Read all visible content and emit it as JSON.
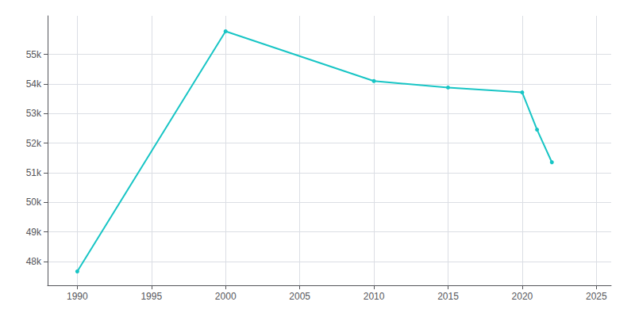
{
  "chart_data": {
    "type": "line",
    "x": [
      1990,
      2000,
      2010,
      2015,
      2020,
      2021,
      2022
    ],
    "values": [
      47669,
      55779,
      54098,
      53880,
      53714,
      52458,
      51356
    ],
    "color": "#18C5C5",
    "marker": "circle",
    "xlim": [
      1988,
      2026
    ],
    "xticks": [
      1990,
      1995,
      2000,
      2005,
      2010,
      2015,
      2020,
      2025
    ],
    "ylim": [
      47200,
      56300
    ],
    "yticks": [
      {
        "value": 48000,
        "label": "48k"
      },
      {
        "value": 49000,
        "label": "49k"
      },
      {
        "value": 50000,
        "label": "50k"
      },
      {
        "value": 51000,
        "label": "51k"
      },
      {
        "value": 52000,
        "label": "52k"
      },
      {
        "value": 53000,
        "label": "53k"
      },
      {
        "value": 54000,
        "label": "54k"
      },
      {
        "value": 55000,
        "label": "55k"
      }
    ],
    "grid": true
  }
}
